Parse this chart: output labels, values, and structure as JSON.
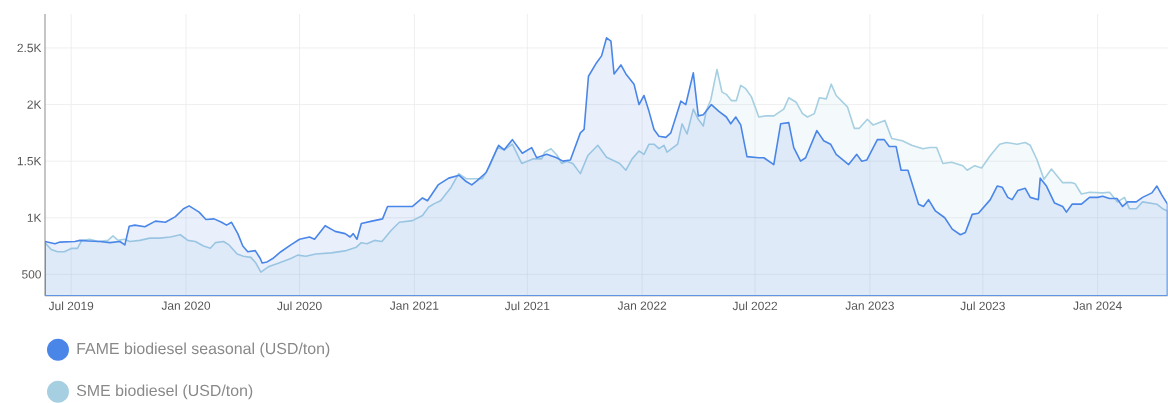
{
  "chart_data": {
    "type": "area",
    "xlim": [
      "2019-05-20",
      "2024-04-22"
    ],
    "ylim": [
      310,
      2800
    ],
    "xticks": [
      {
        "value": "2019-07-01",
        "label": "Jul 2019"
      },
      {
        "value": "2020-01-01",
        "label": "Jan 2020"
      },
      {
        "value": "2020-07-01",
        "label": "Jul 2020"
      },
      {
        "value": "2021-01-01",
        "label": "Jan 2021"
      },
      {
        "value": "2021-07-01",
        "label": "Jul 2021"
      },
      {
        "value": "2022-01-01",
        "label": "Jan 2022"
      },
      {
        "value": "2022-07-01",
        "label": "Jul 2022"
      },
      {
        "value": "2023-01-01",
        "label": "Jan 2023"
      },
      {
        "value": "2023-07-01",
        "label": "Jul 2023"
      },
      {
        "value": "2024-01-01",
        "label": "Jan 2024"
      }
    ],
    "yticks": [
      500,
      {
        "value": 1000,
        "label": "1K"
      },
      {
        "value": 1500,
        "label": "1.5K"
      },
      {
        "value": 2000,
        "label": "2K"
      },
      {
        "value": 2500,
        "label": "2.5K"
      }
    ],
    "grid": true,
    "legend": "bottom",
    "series": [
      {
        "name": "FAME biodiesel seasonal (USD/ton)",
        "color": "#4a86e8",
        "x": [
          "2019-05-20",
          "2019-06-05",
          "2019-06-13",
          "2019-07-07",
          "2019-07-15",
          "2019-07-28",
          "2019-08-16",
          "2019-09-01",
          "2019-09-17",
          "2019-09-25",
          "2019-10-02",
          "2019-10-11",
          "2019-10-27",
          "2019-11-13",
          "2019-11-29",
          "2019-12-15",
          "2019-12-28",
          "2020-01-06",
          "2020-01-22",
          "2020-02-02",
          "2020-02-15",
          "2020-02-27",
          "2020-03-06",
          "2020-03-14",
          "2020-03-24",
          "2020-04-01",
          "2020-04-09",
          "2020-04-21",
          "2020-04-29",
          "2020-05-02",
          "2020-05-10",
          "2020-05-19",
          "2020-06-01",
          "2020-06-17",
          "2020-07-01",
          "2020-07-17",
          "2020-07-25",
          "2020-08-11",
          "2020-08-27",
          "2020-09-12",
          "2020-09-20",
          "2020-09-25",
          "2020-10-01",
          "2020-10-08",
          "2020-10-25",
          "2020-11-11",
          "2020-11-19",
          "2020-12-01",
          "2020-12-17",
          "2020-12-29",
          "2021-01-14",
          "2021-01-22",
          "2021-02-08",
          "2021-02-25",
          "2021-03-14",
          "2021-03-25",
          "2021-04-03",
          "2021-04-12",
          "2021-04-26",
          "2021-05-16",
          "2021-05-25",
          "2021-06-07",
          "2021-06-23",
          "2021-07-08",
          "2021-07-16",
          "2021-08-01",
          "2021-08-17",
          "2021-08-27",
          "2021-09-08",
          "2021-09-24",
          "2021-09-30",
          "2021-10-07",
          "2021-10-20",
          "2021-10-28",
          "2021-11-05",
          "2021-11-12",
          "2021-11-17",
          "2021-11-28",
          "2021-12-06",
          "2021-12-19",
          "2021-12-27",
          "2022-01-04",
          "2022-01-12",
          "2022-01-20",
          "2022-01-28",
          "2022-02-08",
          "2022-02-16",
          "2022-03-04",
          "2022-03-12",
          "2022-03-24",
          "2022-04-01",
          "2022-04-09",
          "2022-04-22",
          "2022-05-04",
          "2022-05-16",
          "2022-05-23",
          "2022-05-31",
          "2022-06-08",
          "2022-06-18",
          "2022-07-07",
          "2022-07-15",
          "2022-07-31",
          "2022-08-11",
          "2022-08-24",
          "2022-09-01",
          "2022-09-12",
          "2022-09-20",
          "2022-10-08",
          "2022-10-19",
          "2022-10-30",
          "2022-11-08",
          "2022-11-28",
          "2022-12-11",
          "2022-12-19",
          "2022-12-27",
          "2023-01-13",
          "2023-01-24",
          "2023-02-01",
          "2023-02-12",
          "2023-02-20",
          "2023-03-03",
          "2023-03-20",
          "2023-03-28",
          "2023-04-05",
          "2023-04-16",
          "2023-05-01",
          "2023-05-13",
          "2023-05-26",
          "2023-06-03",
          "2023-06-14",
          "2023-06-24",
          "2023-07-13",
          "2023-07-24",
          "2023-08-01",
          "2023-08-10",
          "2023-08-17",
          "2023-08-26",
          "2023-09-07",
          "2023-09-15",
          "2023-09-28",
          "2023-10-01",
          "2023-10-11",
          "2023-10-24",
          "2023-11-06",
          "2023-11-12",
          "2023-11-21",
          "2023-12-06",
          "2023-12-19",
          "2024-01-01",
          "2024-01-09",
          "2024-01-20",
          "2024-02-01",
          "2024-02-10",
          "2024-02-18",
          "2024-03-03",
          "2024-03-13",
          "2024-03-28",
          "2024-04-05",
          "2024-04-13",
          "2024-04-22"
        ],
        "values": [
          790,
          770,
          785,
          790,
          800,
          795,
          790,
          780,
          790,
          760,
          925,
          935,
          920,
          970,
          960,
          1010,
          1080,
          1105,
          1050,
          985,
          990,
          960,
          935,
          960,
          860,
          750,
          700,
          710,
          640,
          600,
          610,
          640,
          700,
          760,
          810,
          830,
          810,
          930,
          880,
          860,
          830,
          860,
          810,
          950,
          970,
          990,
          1100,
          1100,
          1100,
          1100,
          1175,
          1150,
          1290,
          1350,
          1375,
          1320,
          1290,
          1330,
          1400,
          1640,
          1600,
          1690,
          1570,
          1620,
          1530,
          1560,
          1530,
          1500,
          1510,
          1750,
          1780,
          2250,
          2370,
          2430,
          2590,
          2560,
          2270,
          2350,
          2270,
          2180,
          2000,
          2080,
          1940,
          1780,
          1720,
          1710,
          1750,
          2030,
          2000,
          2280,
          1900,
          1910,
          2000,
          1940,
          1890,
          1830,
          1890,
          1820,
          1540,
          1530,
          1530,
          1470,
          1830,
          1840,
          1620,
          1500,
          1530,
          1770,
          1680,
          1650,
          1560,
          1470,
          1560,
          1500,
          1510,
          1690,
          1690,
          1630,
          1630,
          1420,
          1420,
          1120,
          1100,
          1160,
          1060,
          1000,
          900,
          850,
          870,
          1030,
          1040,
          1160,
          1280,
          1270,
          1180,
          1160,
          1240,
          1260,
          1180,
          1160,
          1350,
          1280,
          1130,
          1100,
          1050,
          1120,
          1120,
          1180,
          1180,
          1190,
          1170,
          1170,
          1100,
          1140,
          1140,
          1180,
          1220,
          1280,
          1200,
          1120
        ]
      },
      {
        "name": "SME biodiesel (USD/ton)",
        "color": "#a6cfe2",
        "x": [
          "2019-05-20",
          "2019-05-30",
          "2019-06-09",
          "2019-06-20",
          "2019-07-02",
          "2019-07-11",
          "2019-07-18",
          "2019-07-31",
          "2019-08-13",
          "2019-08-29",
          "2019-09-06",
          "2019-09-14",
          "2019-09-24",
          "2019-10-03",
          "2019-10-19",
          "2019-11-04",
          "2019-11-20",
          "2019-12-07",
          "2019-12-23",
          "2020-01-04",
          "2020-01-16",
          "2020-01-29",
          "2020-02-09",
          "2020-02-17",
          "2020-03-01",
          "2020-03-10",
          "2020-03-23",
          "2020-04-02",
          "2020-04-14",
          "2020-04-22",
          "2020-04-30",
          "2020-05-13",
          "2020-05-29",
          "2020-06-17",
          "2020-06-28",
          "2020-07-11",
          "2020-07-27",
          "2020-08-21",
          "2020-09-14",
          "2020-09-30",
          "2020-10-08",
          "2020-10-17",
          "2020-10-29",
          "2020-11-10",
          "2020-11-25",
          "2020-12-08",
          "2020-12-29",
          "2021-01-14",
          "2021-01-24",
          "2021-02-02",
          "2021-02-12",
          "2021-03-01",
          "2021-03-13",
          "2021-03-25",
          "2021-04-03",
          "2021-04-20",
          "2021-05-01",
          "2021-05-14",
          "2021-05-25",
          "2021-06-07",
          "2021-06-22",
          "2021-07-10",
          "2021-07-24",
          "2021-07-29",
          "2021-08-08",
          "2021-08-18",
          "2021-08-25",
          "2021-09-02",
          "2021-09-12",
          "2021-09-24",
          "2021-10-06",
          "2021-10-22",
          "2021-11-05",
          "2021-11-26",
          "2021-12-06",
          "2021-12-16",
          "2021-12-27",
          "2022-01-04",
          "2022-01-12",
          "2022-01-20",
          "2022-01-28",
          "2022-02-05",
          "2022-02-10",
          "2022-02-27",
          "2022-03-06",
          "2022-03-14",
          "2022-03-24",
          "2022-04-01",
          "2022-04-09",
          "2022-04-14",
          "2022-04-21",
          "2022-05-01",
          "2022-05-09",
          "2022-05-16",
          "2022-05-24",
          "2022-06-01",
          "2022-06-08",
          "2022-06-16",
          "2022-06-25",
          "2022-07-07",
          "2022-07-18",
          "2022-07-31",
          "2022-08-16",
          "2022-08-24",
          "2022-09-05",
          "2022-09-15",
          "2022-09-23",
          "2022-10-04",
          "2022-10-12",
          "2022-10-23",
          "2022-10-31",
          "2022-11-08",
          "2022-11-26",
          "2022-12-07",
          "2022-12-15",
          "2022-12-28",
          "2023-01-06",
          "2023-01-25",
          "2023-02-05",
          "2023-02-22",
          "2023-03-09",
          "2023-03-27",
          "2023-04-07",
          "2023-04-18",
          "2023-04-28",
          "2023-05-12",
          "2023-05-30",
          "2023-06-06",
          "2023-06-18",
          "2023-06-29",
          "2023-07-13",
          "2023-07-28",
          "2023-08-08",
          "2023-08-25",
          "2023-09-07",
          "2023-09-15",
          "2023-09-26",
          "2023-10-07",
          "2023-10-19",
          "2023-11-06",
          "2023-11-21",
          "2023-11-26",
          "2023-12-06",
          "2023-12-19",
          "2024-01-09",
          "2024-01-20",
          "2024-02-02",
          "2024-02-13",
          "2024-02-21",
          "2024-03-03",
          "2024-03-13",
          "2024-04-05",
          "2024-04-14",
          "2024-04-22"
        ],
        "values": [
          780,
          720,
          700,
          700,
          730,
          730,
          800,
          810,
          790,
          800,
          840,
          800,
          810,
          790,
          800,
          820,
          820,
          830,
          850,
          800,
          790,
          750,
          730,
          780,
          790,
          760,
          680,
          660,
          650,
          600,
          520,
          570,
          600,
          640,
          670,
          660,
          680,
          690,
          710,
          740,
          780,
          770,
          800,
          790,
          890,
          960,
          975,
          1020,
          1095,
          1125,
          1150,
          1270,
          1390,
          1345,
          1345,
          1345,
          1450,
          1620,
          1600,
          1650,
          1480,
          1520,
          1520,
          1580,
          1610,
          1550,
          1480,
          1500,
          1480,
          1390,
          1550,
          1640,
          1535,
          1480,
          1420,
          1520,
          1590,
          1560,
          1650,
          1650,
          1610,
          1640,
          1580,
          1650,
          1830,
          1740,
          1960,
          1870,
          1810,
          1950,
          2040,
          2310,
          2110,
          2090,
          2035,
          2035,
          2170,
          2140,
          2070,
          1890,
          1900,
          1900,
          1960,
          2060,
          2020,
          1920,
          1890,
          1920,
          2060,
          2050,
          2180,
          2080,
          1980,
          1790,
          1790,
          1870,
          1820,
          1860,
          1700,
          1680,
          1640,
          1610,
          1620,
          1620,
          1480,
          1490,
          1460,
          1420,
          1460,
          1440,
          1550,
          1650,
          1665,
          1650,
          1665,
          1640,
          1510,
          1340,
          1430,
          1310,
          1310,
          1300,
          1210,
          1225,
          1220,
          1225,
          1140,
          1180,
          1080,
          1080,
          1140,
          1120,
          1080,
          1060
        ]
      }
    ]
  }
}
